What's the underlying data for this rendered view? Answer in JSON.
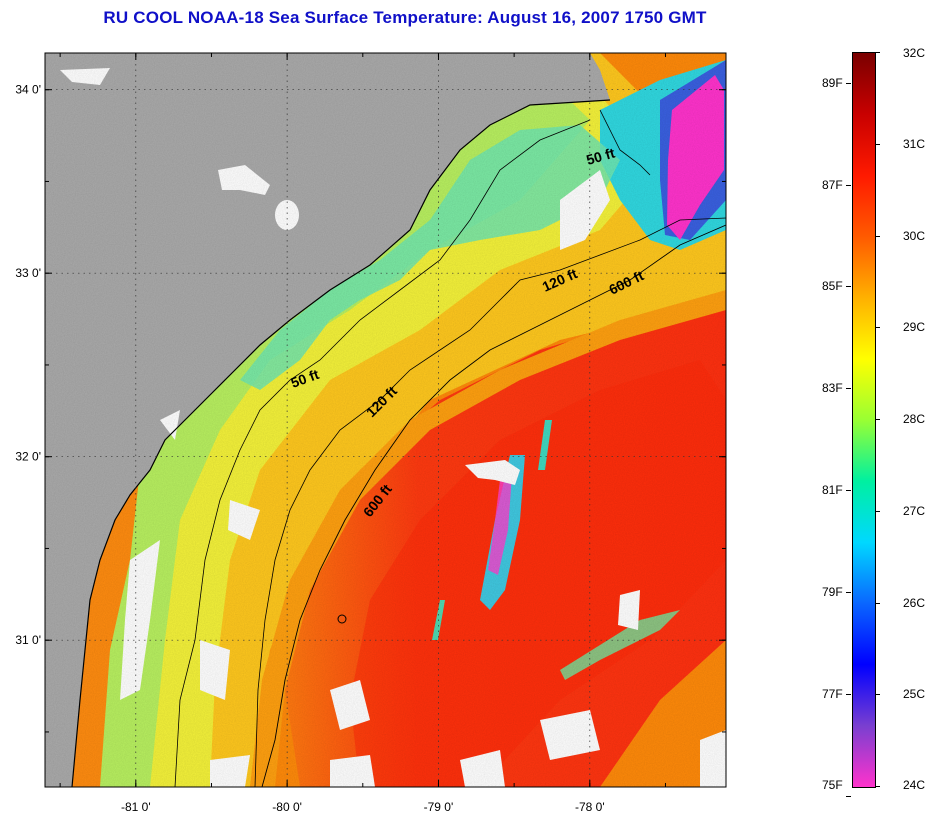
{
  "title": "RU COOL  NOAA-18  Sea Surface Temperature:  August 16, 2007 1750 GMT",
  "axes": {
    "lat_labels": [
      {
        "text": "34 0'",
        "lat": 34.0
      },
      {
        "text": "33 0'",
        "lat": 33.0
      },
      {
        "text": "32 0'",
        "lat": 32.0
      },
      {
        "text": "31 0'",
        "lat": 31.0
      }
    ],
    "lon_labels": [
      {
        "text": "-81 0'",
        "lon": -81.0
      },
      {
        "text": "-80 0'",
        "lon": -80.0
      },
      {
        "text": "-79 0'",
        "lon": -79.0
      },
      {
        "text": "-78 0'",
        "lon": -78.0
      }
    ],
    "lon_range": [
      -81.6,
      -77.1
    ],
    "lat_range": [
      30.2,
      34.2
    ],
    "grid": "dotted"
  },
  "isobaths": [
    {
      "label": "50 ft"
    },
    {
      "label": "50 ft"
    },
    {
      "label": "120 ft"
    },
    {
      "label": "120 ft"
    },
    {
      "label": "600 ft"
    },
    {
      "label": "600 ft"
    }
  ],
  "colorbar": {
    "celsius": [
      "32C",
      "31C",
      "30C",
      "29C",
      "28C",
      "27C",
      "26C",
      "25C",
      "24C"
    ],
    "fahrenheit": [
      "89F",
      "87F",
      "85F",
      "83F",
      "81F",
      "79F",
      "77F",
      "75F"
    ],
    "range_c": [
      24,
      32
    ],
    "colors": [
      "#ff33cc",
      "#7a3fd0",
      "#0000ff",
      "#0a66ff",
      "#00d8ff",
      "#00f0a0",
      "#99ff33",
      "#ffff00",
      "#ffb000",
      "#ff5a00",
      "#ff1a00",
      "#c80000",
      "#7a0000"
    ]
  },
  "colors": {
    "land": "#aaaaaa",
    "warm_stream": "#ff3c14",
    "shelf": "#ffd21e",
    "nearshore": "#a0f0a0",
    "cloud": "#ffffff",
    "title": "#1010c8"
  }
}
